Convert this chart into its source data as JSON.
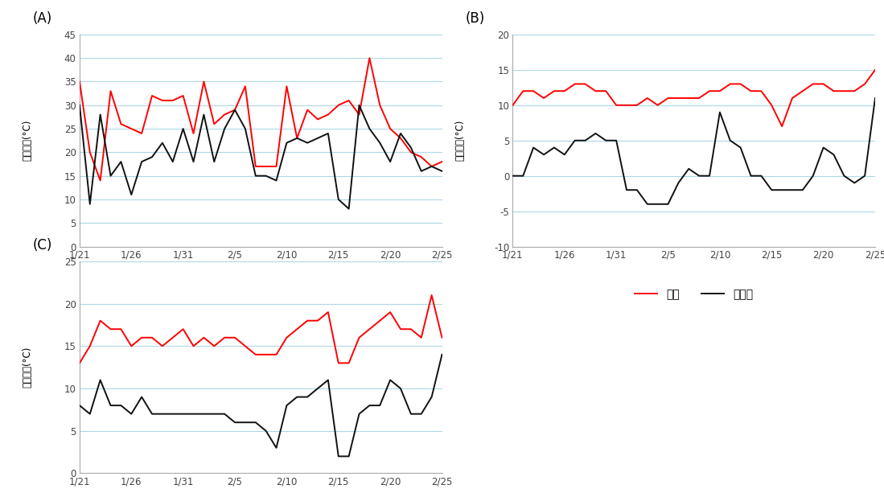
{
  "x_labels": [
    "1/21",
    "1/26",
    "1/31",
    "2/5",
    "2/10",
    "2/15",
    "2/20",
    "2/25"
  ],
  "x_ticks": [
    0,
    5,
    10,
    15,
    20,
    25,
    30,
    35
  ],
  "n_points": 36,
  "A_gaon": [
    35,
    20,
    14,
    33,
    26,
    25,
    24,
    32,
    31,
    31,
    32,
    24,
    35,
    26,
    28,
    29,
    34,
    17,
    17,
    17,
    34,
    23,
    29,
    27,
    28,
    30,
    31,
    28,
    40,
    30,
    25,
    23,
    20,
    19,
    17,
    18
  ],
  "A_mugaon": [
    30,
    9,
    28,
    15,
    18,
    11,
    18,
    19,
    22,
    18,
    25,
    18,
    28,
    18,
    25,
    29,
    25,
    15,
    15,
    14,
    22,
    23,
    22,
    23,
    24,
    10,
    8,
    30,
    25,
    22,
    18,
    24,
    21,
    16,
    17,
    16
  ],
  "B_gaon": [
    10,
    12,
    12,
    11,
    12,
    12,
    13,
    13,
    12,
    12,
    10,
    10,
    10,
    11,
    10,
    11,
    11,
    11,
    11,
    12,
    12,
    13,
    13,
    12,
    12,
    10,
    7,
    11,
    12,
    13,
    13,
    12,
    12,
    12,
    13,
    15
  ],
  "B_mugaon": [
    0,
    0,
    4,
    3,
    4,
    3,
    5,
    5,
    6,
    5,
    5,
    -2,
    -2,
    -4,
    -4,
    -4,
    -1,
    1,
    0,
    0,
    9,
    5,
    4,
    0,
    0,
    -2,
    -2,
    -2,
    -2,
    0,
    4,
    3,
    0,
    -1,
    0,
    11
  ],
  "C_gaon": [
    13,
    15,
    18,
    17,
    17,
    15,
    16,
    16,
    15,
    16,
    17,
    15,
    16,
    15,
    16,
    16,
    15,
    14,
    14,
    14,
    16,
    17,
    18,
    18,
    19,
    13,
    13,
    16,
    17,
    18,
    19,
    17,
    17,
    16,
    21,
    16
  ],
  "C_mugaon": [
    8,
    7,
    11,
    8,
    8,
    7,
    9,
    7,
    7,
    7,
    7,
    7,
    7,
    7,
    7,
    6,
    6,
    6,
    5,
    3,
    8,
    9,
    9,
    10,
    11,
    2,
    2,
    7,
    8,
    8,
    11,
    10,
    7,
    7,
    9,
    14
  ],
  "color_gaon": "#ff0000",
  "color_mugaon": "#111111",
  "linewidth": 1.4,
  "A_ylabel": "최고온도(°C)",
  "B_ylabel": "최저온도(°C)",
  "C_ylabel": "평균온도(°C)",
  "A_ylim": [
    0,
    45
  ],
  "A_yticks": [
    0,
    5,
    10,
    15,
    20,
    25,
    30,
    35,
    40,
    45
  ],
  "B_ylim": [
    -10,
    20
  ],
  "B_yticks": [
    -10,
    -5,
    0,
    5,
    10,
    15,
    20
  ],
  "C_ylim": [
    0,
    25
  ],
  "C_yticks": [
    0,
    5,
    10,
    15,
    20,
    25
  ],
  "legend_gaon": "가온",
  "legend_mugaon": "무가온",
  "panel_labels": [
    "(A)",
    "(B)",
    "(C)"
  ],
  "background_color": "#ffffff",
  "grid_color": "#add8e6"
}
